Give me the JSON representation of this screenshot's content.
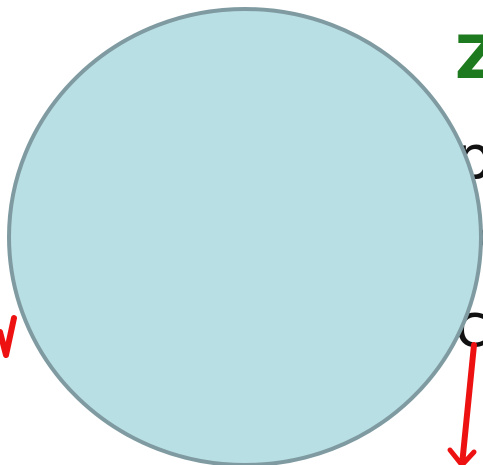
{
  "diagram": {
    "heading_fragment": "Z",
    "text_fragments": [
      "p",
      "v",
      "c"
    ],
    "colors": {
      "circle_fill": "#b8dfe4",
      "circle_stroke": "#7f9ba1",
      "heading": "#1e7a1e",
      "arrow": "#ee1111",
      "text": "#111111"
    }
  }
}
